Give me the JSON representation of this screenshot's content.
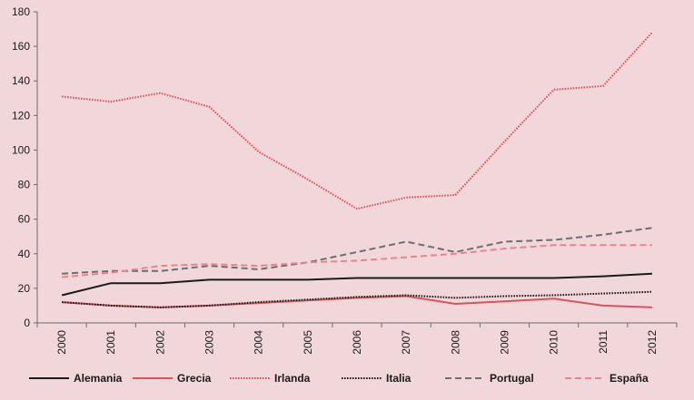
{
  "chart_data": {
    "type": "line",
    "title": "",
    "xlabel": "",
    "ylabel": "",
    "categories": [
      "2000",
      "2001",
      "2002",
      "2003",
      "2004",
      "2005",
      "2006",
      "2007",
      "2008",
      "2009",
      "2010",
      "2011",
      "2012"
    ],
    "ylim": [
      0,
      180
    ],
    "yticks": [
      0,
      20,
      40,
      60,
      80,
      100,
      120,
      140,
      160,
      180
    ],
    "grid": false,
    "legend_position": "bottom",
    "series": [
      {
        "name": "Alemania",
        "color": "#1a1a1a",
        "dash": "solid",
        "values": [
          16,
          23,
          23,
          25,
          25,
          25,
          26,
          26,
          26,
          26,
          26,
          27,
          28.5
        ]
      },
      {
        "name": "Grecia",
        "color": "#d9535a",
        "dash": "solid",
        "values": [
          12,
          10,
          9,
          10,
          11.5,
          13,
          14.5,
          15.5,
          11,
          12.5,
          14,
          10,
          9
        ]
      },
      {
        "name": "Irlanda",
        "color": "#d9535a",
        "dash": "dotted",
        "values": [
          131,
          128,
          133,
          125,
          99,
          83,
          66,
          72.5,
          74,
          105,
          135,
          137,
          168
        ]
      },
      {
        "name": "Italia",
        "color": "#1a1a1a",
        "dash": "dotted",
        "values": [
          12,
          10,
          9,
          10,
          12,
          13.5,
          15,
          16,
          14.5,
          15.5,
          16,
          17,
          18
        ]
      },
      {
        "name": "Portugal",
        "color": "#6e6e6e",
        "dash": "dashed",
        "values": [
          28.5,
          30,
          30,
          33,
          31,
          35,
          41,
          47,
          41,
          47,
          48,
          51,
          55
        ]
      },
      {
        "name": "España",
        "color": "#e8858a",
        "dash": "dashed",
        "values": [
          26.5,
          29,
          33,
          34,
          33,
          35,
          36,
          38,
          40,
          43,
          45,
          45,
          45
        ]
      }
    ]
  }
}
